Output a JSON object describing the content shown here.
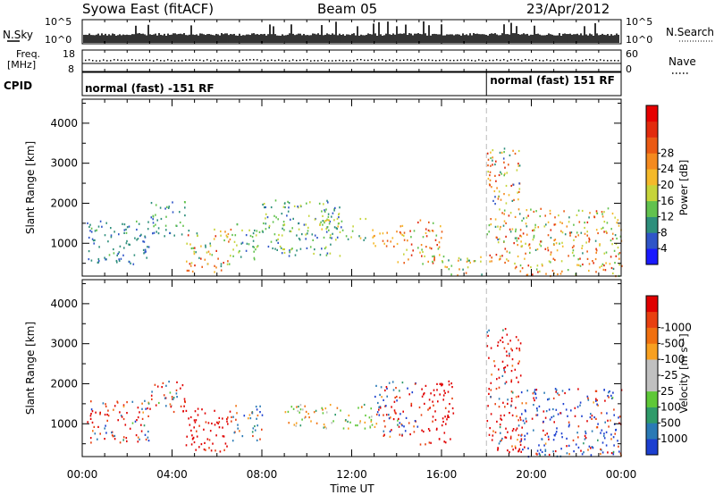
{
  "header": {
    "station": "Syowa East (fitACF)",
    "beam": "Beam 05",
    "date": "23/Apr/2012"
  },
  "strip": {
    "nsky_label": "N.Sky",
    "nsky_ticks": [
      "10^5",
      "10^0"
    ],
    "nsearch_label": "N.Search",
    "nsearch_ticks": [
      "10^5",
      "10^0"
    ],
    "freq_label": "Freq.",
    "freq_unit": "[MHz]",
    "freq_ticks": [
      "18",
      "8"
    ],
    "nave_label": "Nave",
    "nave_ticks": [
      "60",
      "0"
    ],
    "cpid_label": "CPID",
    "modes": [
      {
        "label": "normal (fast) -151 RF",
        "start_hour": 0
      },
      {
        "label": "normal (fast) 151 RF",
        "start_hour": 18
      }
    ]
  },
  "chart_data": [
    {
      "type": "heatmap",
      "name": "Power",
      "xlabel": "",
      "ylabel": "Slant Range [km]",
      "xlim": [
        0,
        24
      ],
      "ylim": [
        180,
        4600
      ],
      "y_ticks": [
        1000,
        2000,
        3000,
        4000
      ],
      "colorbar": {
        "title": "Power [dB]",
        "labels": [
          "4",
          "8",
          "12",
          "16",
          "20",
          "24",
          "28"
        ],
        "colors": [
          "#1a1aff",
          "#2f55c8",
          "#2e8f7c",
          "#62c24e",
          "#c6d43a",
          "#f4b92a",
          "#f48a1f",
          "#ea5a14",
          "#e22b0d",
          "#e60000"
        ]
      },
      "scatter_regions": [
        {
          "t": [
            0.2,
            3.0
          ],
          "r": [
            500,
            1600
          ],
          "v": [
            4,
            10
          ]
        },
        {
          "t": [
            3.0,
            4.6
          ],
          "r": [
            1200,
            2100
          ],
          "v": [
            4,
            12
          ]
        },
        {
          "t": [
            4.6,
            6.6
          ],
          "r": [
            300,
            1400
          ],
          "v": [
            8,
            28
          ]
        },
        {
          "t": [
            6.6,
            8.0
          ],
          "r": [
            600,
            1500
          ],
          "v": [
            6,
            14
          ]
        },
        {
          "t": [
            8.0,
            11.5
          ],
          "r": [
            700,
            2100
          ],
          "v": [
            4,
            16
          ]
        },
        {
          "t": [
            10.5,
            12.6
          ],
          "r": [
            1100,
            1700
          ],
          "v": [
            6,
            18
          ]
        },
        {
          "t": [
            12.8,
            14.0
          ],
          "r": [
            900,
            1400
          ],
          "v": [
            16,
            28
          ]
        },
        {
          "t": [
            14.0,
            16.0
          ],
          "r": [
            500,
            1600
          ],
          "v": [
            10,
            28
          ]
        },
        {
          "t": [
            16.0,
            17.8
          ],
          "r": [
            200,
            700
          ],
          "v": [
            8,
            24
          ]
        },
        {
          "t": [
            18.0,
            19.5
          ],
          "r": [
            300,
            3400
          ],
          "v": [
            4,
            28
          ]
        },
        {
          "t": [
            19.5,
            24.0
          ],
          "r": [
            200,
            1900
          ],
          "v": [
            8,
            28
          ]
        }
      ]
    },
    {
      "type": "heatmap",
      "name": "Velocity",
      "xlabel": "Time UT",
      "ylabel": "Slant Range [km]",
      "xlim": [
        0,
        24
      ],
      "ylim": [
        180,
        4600
      ],
      "x_ticks": [
        "00:00",
        "04:00",
        "08:00",
        "12:00",
        "16:00",
        "20:00",
        "00:00"
      ],
      "y_ticks": [
        1000,
        2000,
        3000,
        4000
      ],
      "colorbar": {
        "title": "Velocity [m s⁻¹]",
        "labels": [
          "1000",
          "500",
          "100",
          "25",
          "-25",
          "-100",
          "-500",
          "-1000"
        ],
        "colors": [
          "#1c3fd0",
          "#2a7ab5",
          "#2f9b6a",
          "#5ec838",
          "#c0c0c0",
          "#c0c0c0",
          "#f8a020",
          "#f07010",
          "#e84010",
          "#e00000"
        ]
      },
      "scatter_regions": [
        {
          "t": [
            0.2,
            3.0
          ],
          "r": [
            500,
            1600
          ],
          "v": [
            -600,
            300
          ]
        },
        {
          "t": [
            3.0,
            4.6
          ],
          "r": [
            1300,
            2100
          ],
          "v": [
            -400,
            200
          ]
        },
        {
          "t": [
            4.6,
            6.6
          ],
          "r": [
            300,
            1400
          ],
          "v": [
            -1000,
            -100
          ]
        },
        {
          "t": [
            6.6,
            8.0
          ],
          "r": [
            600,
            1500
          ],
          "v": [
            -200,
            400
          ]
        },
        {
          "t": [
            9.0,
            13.0
          ],
          "r": [
            900,
            1500
          ],
          "v": [
            -20,
            20
          ]
        },
        {
          "t": [
            13.0,
            15.0
          ],
          "r": [
            700,
            2100
          ],
          "v": [
            -500,
            500
          ]
        },
        {
          "t": [
            15.0,
            16.5
          ],
          "r": [
            500,
            2100
          ],
          "v": [
            -1000,
            -100
          ]
        },
        {
          "t": [
            18.0,
            19.5
          ],
          "r": [
            300,
            3400
          ],
          "v": [
            -1000,
            200
          ]
        },
        {
          "t": [
            19.5,
            24.0
          ],
          "r": [
            200,
            1900
          ],
          "v": [
            -600,
            1000
          ]
        }
      ]
    }
  ]
}
